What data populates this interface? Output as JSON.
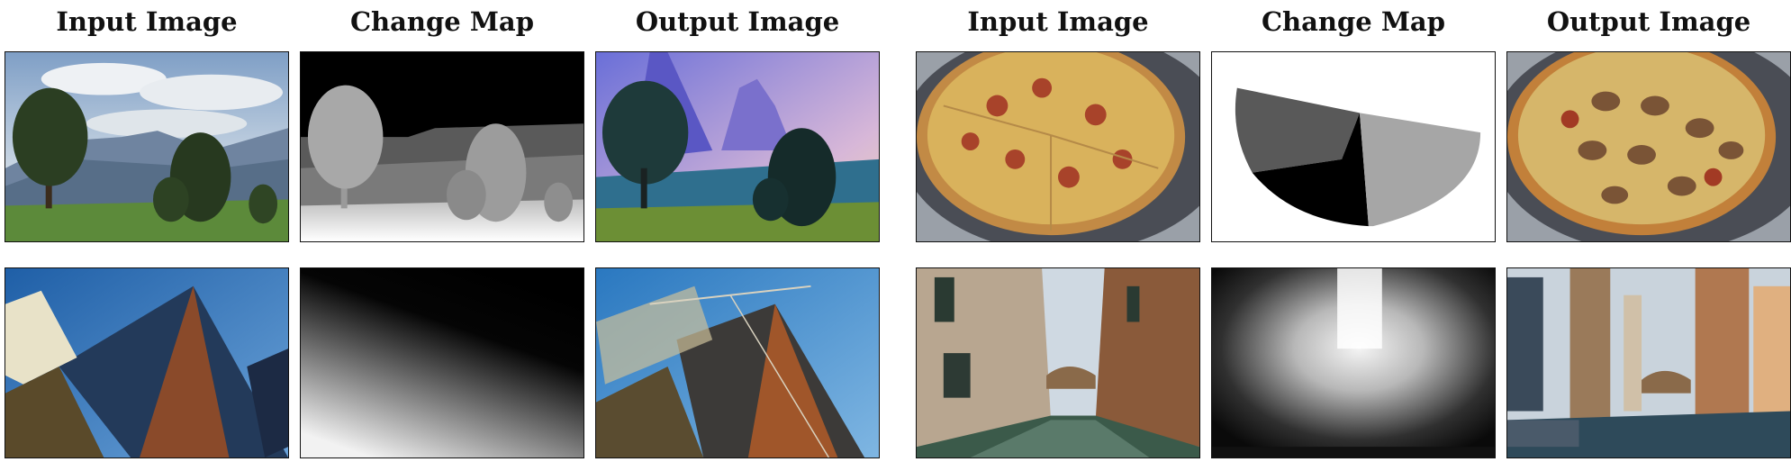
{
  "figure": {
    "headers": [
      "Input Image",
      "Change Map",
      "Output Image",
      "Input Image",
      "Change Map",
      "Output Image"
    ],
    "rows": [
      {
        "panels": [
          {
            "role": "input",
            "content": "landscape with trees and mountains"
          },
          {
            "role": "change-map",
            "content": "depth map of landscape"
          },
          {
            "role": "output",
            "content": "stylized fantasy landscape"
          },
          {
            "role": "input",
            "content": "pizza"
          },
          {
            "role": "change-map",
            "content": "three-region segment map of pizza"
          },
          {
            "role": "output",
            "content": "mushroom pizza"
          }
        ]
      },
      {
        "panels": [
          {
            "role": "input",
            "content": "skyscraper from below"
          },
          {
            "role": "change-map",
            "content": "diagonal gradient map"
          },
          {
            "role": "output",
            "content": "skyscraper under construction"
          },
          {
            "role": "input",
            "content": "venice canal"
          },
          {
            "role": "change-map",
            "content": "depth map of canal"
          },
          {
            "role": "output",
            "content": "futuristic canal city"
          }
        ]
      }
    ]
  }
}
